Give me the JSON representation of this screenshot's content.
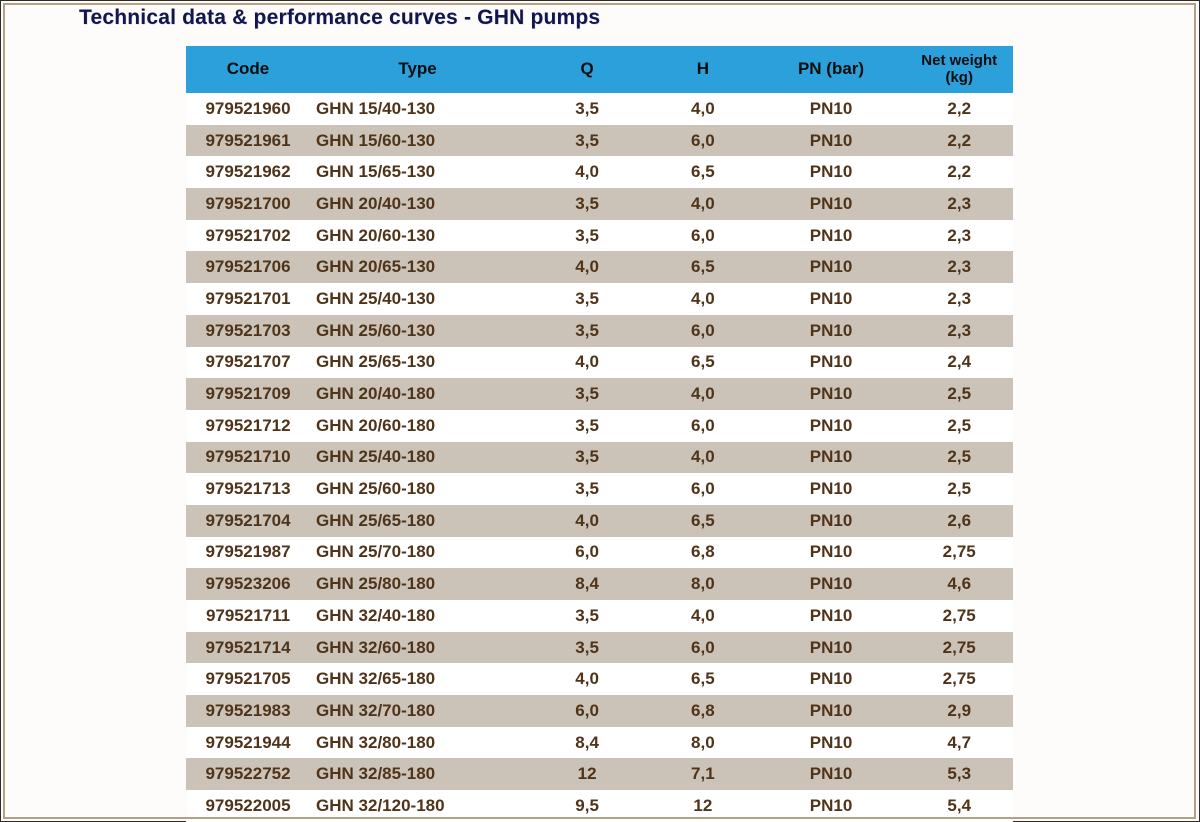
{
  "page": {
    "title": "Technical data & performance curves - GHN pumps"
  },
  "table": {
    "columns": [
      {
        "key": "code",
        "label": "Code"
      },
      {
        "key": "type",
        "label": "Type"
      },
      {
        "key": "q",
        "label": "Q"
      },
      {
        "key": "h",
        "label": "H"
      },
      {
        "key": "pn",
        "label": "PN (bar)"
      },
      {
        "key": "weight",
        "label": "Net weight (kg)"
      }
    ],
    "rows": [
      [
        "979521960",
        "GHN 15/40-130",
        "3,5",
        "4,0",
        "PN10",
        "2,2"
      ],
      [
        "979521961",
        "GHN 15/60-130",
        "3,5",
        "6,0",
        "PN10",
        "2,2"
      ],
      [
        "979521962",
        "GHN 15/65-130",
        "4,0",
        "6,5",
        "PN10",
        "2,2"
      ],
      [
        "979521700",
        "GHN 20/40-130",
        "3,5",
        "4,0",
        "PN10",
        "2,3"
      ],
      [
        "979521702",
        "GHN 20/60-130",
        "3,5",
        "6,0",
        "PN10",
        "2,3"
      ],
      [
        "979521706",
        "GHN 20/65-130",
        "4,0",
        "6,5",
        "PN10",
        "2,3"
      ],
      [
        "979521701",
        "GHN 25/40-130",
        "3,5",
        "4,0",
        "PN10",
        "2,3"
      ],
      [
        "979521703",
        "GHN 25/60-130",
        "3,5",
        "6,0",
        "PN10",
        "2,3"
      ],
      [
        "979521707",
        "GHN 25/65-130",
        "4,0",
        "6,5",
        "PN10",
        "2,4"
      ],
      [
        "979521709",
        "GHN 20/40-180",
        "3,5",
        "4,0",
        "PN10",
        "2,5"
      ],
      [
        "979521712",
        "GHN 20/60-180",
        "3,5",
        "6,0",
        "PN10",
        "2,5"
      ],
      [
        "979521710",
        "GHN 25/40-180",
        "3,5",
        "4,0",
        "PN10",
        "2,5"
      ],
      [
        "979521713",
        "GHN 25/60-180",
        "3,5",
        "6,0",
        "PN10",
        "2,5"
      ],
      [
        "979521704",
        "GHN 25/65-180",
        "4,0",
        "6,5",
        "PN10",
        "2,6"
      ],
      [
        "979521987",
        "GHN 25/70-180",
        "6,0",
        "6,8",
        "PN10",
        "2,75"
      ],
      [
        "979523206",
        "GHN 25/80-180",
        "8,4",
        "8,0",
        "PN10",
        "4,6"
      ],
      [
        "979521711",
        "GHN 32/40-180",
        "3,5",
        "4,0",
        "PN10",
        "2,75"
      ],
      [
        "979521714",
        "GHN 32/60-180",
        "3,5",
        "6,0",
        "PN10",
        "2,75"
      ],
      [
        "979521705",
        "GHN 32/65-180",
        "4,0",
        "6,5",
        "PN10",
        "2,75"
      ],
      [
        "979521983",
        "GHN 32/70-180",
        "6,0",
        "6,8",
        "PN10",
        "2,9"
      ],
      [
        "979521944",
        "GHN 32/80-180",
        "8,4",
        "8,0",
        "PN10",
        "4,7"
      ],
      [
        "979522752",
        "GHN 32/85-180",
        "12",
        "7,1",
        "PN10",
        "5,3"
      ],
      [
        "979522005",
        "GHN 32/120-180",
        "9,5",
        "12",
        "PN10",
        "5,4"
      ]
    ]
  },
  "colors": {
    "header_bg": "#2ca0db",
    "header_text": "#0d0d0d",
    "row_bg": "#ffffff",
    "row_alt_bg": "#cbc3b7",
    "data_text": "#4f3419",
    "title_text": "#13164b",
    "frame_border": "#b2a283"
  }
}
